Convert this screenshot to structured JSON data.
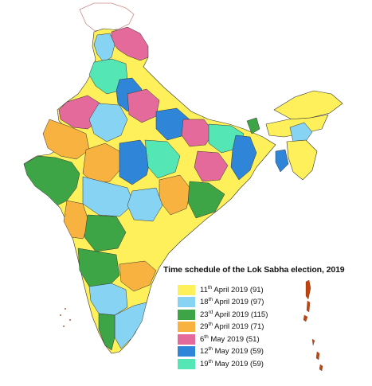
{
  "legend": {
    "title": "Time schedule of the Lok Sabha election, 2019",
    "items": [
      {
        "day": "11",
        "suffix": "th",
        "rest": " April 2019 (91)",
        "color": "#fdf05a"
      },
      {
        "day": "18",
        "suffix": "th",
        "rest": " April 2019 (97)",
        "color": "#86d3f3"
      },
      {
        "day": "23",
        "suffix": "rd",
        "rest": " April 2019 (115)",
        "color": "#3ea547"
      },
      {
        "day": "29",
        "suffix": "th",
        "rest": " April 2019 (71)",
        "color": "#f7b23f"
      },
      {
        "day": "6",
        "suffix": "th",
        "rest": " May 2019 (51)",
        "color": "#e46a9b"
      },
      {
        "day": "12",
        "suffix": "th",
        "rest": " May 2019 (59)",
        "color": "#2f86d9"
      },
      {
        "day": "19",
        "suffix": "th",
        "rest": " May 2019 (59)",
        "color": "#55e6b6"
      }
    ]
  },
  "map": {
    "disputed_color": "#ffffff",
    "border_color": "#333333"
  }
}
